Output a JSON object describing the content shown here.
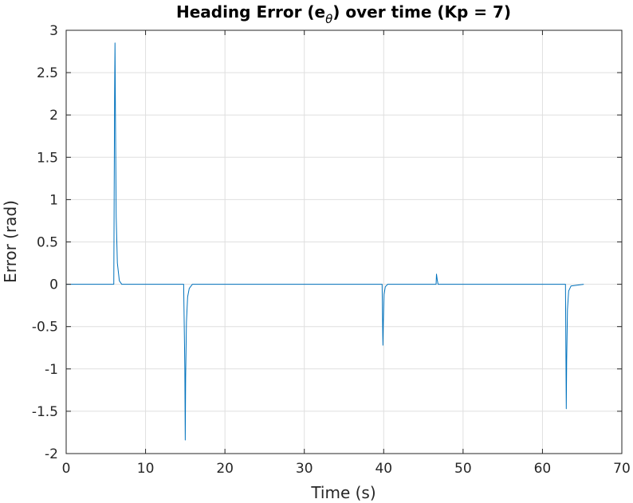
{
  "chart_data": {
    "type": "line",
    "title": {
      "prefix": "Heading Error (e",
      "subscript": "θ",
      "suffix": ") over time (Kp = 7)"
    },
    "xlabel": "Time (s)",
    "ylabel": "Error (rad)",
    "xlim": [
      0,
      70
    ],
    "ylim": [
      -2,
      3
    ],
    "xticks": [
      0,
      10,
      20,
      30,
      40,
      50,
      60,
      70
    ],
    "xtick_labels": [
      "0",
      "10",
      "20",
      "30",
      "40",
      "50",
      "60",
      "70"
    ],
    "yticks": [
      -2,
      -1.5,
      -1,
      -0.5,
      0,
      0.5,
      1,
      1.5,
      2,
      2.5,
      3
    ],
    "ytick_labels": [
      "-2",
      "-1.5",
      "-1",
      "-0.5",
      "0",
      "0.5",
      "1",
      "1.5",
      "2",
      "2.5",
      "3"
    ],
    "grid": true,
    "line_color": "#0072BD",
    "series": [
      {
        "x": [
          0,
          6.0,
          6.1,
          6.15,
          6.2,
          6.3,
          6.45,
          6.7,
          7.0,
          14.8,
          14.95,
          15.0,
          15.05,
          15.15,
          15.3,
          15.5,
          15.9,
          39.8,
          39.9,
          39.95,
          40.05,
          40.2,
          40.5,
          46.6,
          46.65,
          46.75,
          46.85,
          62.9,
          63.0,
          63.05,
          63.15,
          63.3,
          63.6,
          65.2
        ],
        "y": [
          0,
          0,
          2.2,
          2.85,
          2.1,
          0.8,
          0.25,
          0.04,
          0,
          0,
          -1.0,
          -1.84,
          -1.1,
          -0.45,
          -0.15,
          -0.05,
          0,
          0,
          -0.72,
          -0.45,
          -0.12,
          -0.03,
          0,
          0,
          0.12,
          0.05,
          0,
          0,
          -1.47,
          -0.9,
          -0.3,
          -0.08,
          -0.02,
          0
        ]
      }
    ]
  }
}
